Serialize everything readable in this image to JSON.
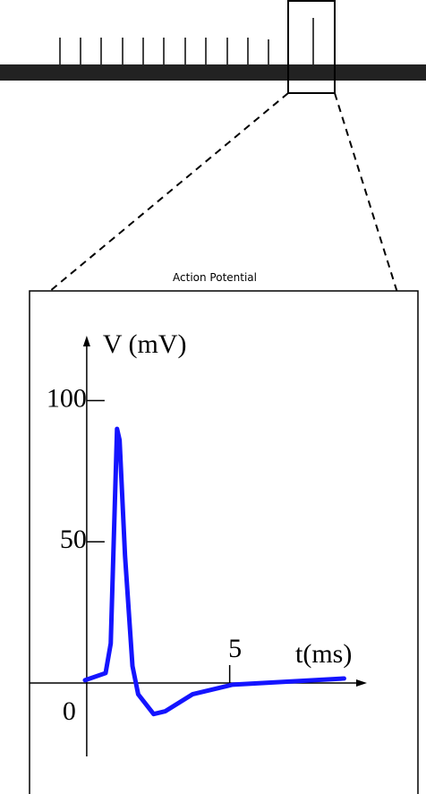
{
  "chart_data": {
    "type": "line",
    "title": "Action Potential",
    "x_label": "t(ms)",
    "y_label": "V (mV)",
    "x": [
      -0.06,
      0.66,
      0.84,
      1.06,
      1.15,
      1.34,
      1.6,
      1.8,
      2.34,
      2.75,
      3.7,
      5.1,
      9.0
    ],
    "series": [
      {
        "name": "V",
        "color": "#1414ff",
        "values": [
          1,
          3.5,
          14,
          90,
          86,
          45,
          6,
          -4,
          -11,
          -10,
          -4,
          -0.6,
          1.6
        ]
      }
    ],
    "xlim": [
      -2,
      9.8
    ],
    "ylim": [
      -26,
      123
    ],
    "xticks": [
      5
    ],
    "yticks": [
      0,
      50,
      100
    ]
  }
}
